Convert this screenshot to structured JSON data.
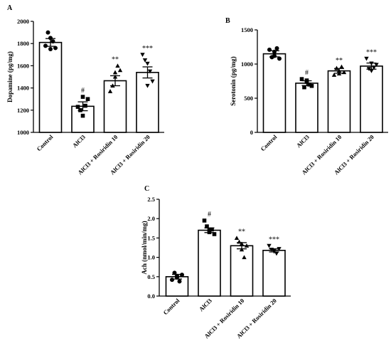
{
  "chart_data": [
    {
      "panel": "A",
      "type": "bar",
      "categories": [
        "Control",
        "AlCl3",
        "AlCl3 + Rosiridin 10",
        "AlCl3 + Rosiridin 20"
      ],
      "ylabel": "Dopamine (pg/mg)",
      "ylim": [
        1000,
        2000
      ],
      "yticks": [
        1000,
        1200,
        1400,
        1600,
        1800,
        2000
      ],
      "values": [
        1810,
        1235,
        1465,
        1540
      ],
      "sem": [
        35,
        40,
        45,
        50
      ],
      "significance": [
        "",
        "#",
        "**",
        "***"
      ],
      "points": [
        [
          1780,
          1900,
          1850,
          1820,
          1760,
          1750
        ],
        [
          1230,
          1200,
          1150,
          1240,
          1300,
          1320
        ],
        [
          1370,
          1420,
          1500,
          1600,
          1560,
          1540
        ],
        [
          1700,
          1650,
          1620,
          1550,
          1460,
          1420
        ]
      ],
      "markers": [
        "circle",
        "square",
        "triangle-up",
        "triangle-down"
      ],
      "grid": false
    },
    {
      "panel": "B",
      "type": "bar",
      "categories": [
        "Control",
        "AlCl3",
        "AlCl3 + Rosiridin 10",
        "AlCl3 + Rosiridin 20"
      ],
      "ylabel": "Serotonin (pg/mg)",
      "ylim": [
        0,
        1500
      ],
      "yticks": [
        0,
        500,
        1000,
        1500
      ],
      "values": [
        1150,
        720,
        900,
        970
      ],
      "sem": [
        45,
        35,
        35,
        45
      ],
      "significance": [
        "",
        "#",
        "**",
        "***"
      ],
      "points": [
        [
          1210,
          1100,
          1180,
          1230,
          1080,
          1120
        ],
        [
          780,
          660,
          740,
          700,
          680,
          760
        ],
        [
          840,
          940,
          860,
          960,
          880,
          900
        ],
        [
          1080,
          930,
          1010,
          950,
          990,
          900
        ]
      ],
      "markers": [
        "circle",
        "square",
        "triangle-up",
        "triangle-down"
      ],
      "grid": false
    },
    {
      "panel": "C",
      "type": "bar",
      "categories": [
        "Control",
        "AlCl3",
        "AlCl3 + Rosiridin 10",
        "AlCl3 + Rosiridin 20"
      ],
      "ylabel": "Ach (nmol/min/mg)",
      "ylim": [
        0,
        2.5
      ],
      "yticks": [
        "0.0",
        "0.5",
        "1.0",
        "1.5",
        "2.0",
        "2.5"
      ],
      "values": [
        0.5,
        1.7,
        1.3,
        1.18
      ],
      "sem": [
        0.06,
        0.06,
        0.08,
        0.04
      ],
      "significance": [
        "",
        "#",
        "**",
        "***"
      ],
      "points": [
        [
          0.42,
          0.6,
          0.52,
          0.38,
          0.55,
          0.48
        ],
        [
          1.95,
          1.8,
          1.65,
          1.72,
          1.6,
          1.7
        ],
        [
          1.5,
          1.4,
          1.2,
          1.0,
          1.3,
          1.35
        ],
        [
          1.3,
          1.2,
          1.15,
          1.1,
          1.22,
          1.18
        ]
      ],
      "markers": [
        "circle",
        "square",
        "triangle-up",
        "triangle-down"
      ],
      "grid": false
    }
  ]
}
